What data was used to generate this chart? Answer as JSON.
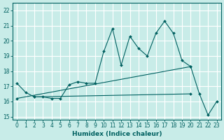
{
  "title": "",
  "xlabel": "Humidex (Indice chaleur)",
  "bg_color": "#c8ece8",
  "grid_color": "#ffffff",
  "line_color": "#006060",
  "xlim": [
    -0.5,
    23.5
  ],
  "ylim": [
    14.8,
    22.5
  ],
  "yticks": [
    15,
    16,
    17,
    18,
    19,
    20,
    21,
    22
  ],
  "xticks": [
    0,
    1,
    2,
    3,
    4,
    5,
    6,
    7,
    8,
    9,
    10,
    11,
    12,
    13,
    14,
    15,
    16,
    17,
    18,
    19,
    20,
    21,
    22,
    23
  ],
  "series1": [
    17.2,
    16.6,
    16.3,
    16.3,
    16.2,
    16.2,
    17.1,
    17.3,
    17.2,
    17.2,
    19.3,
    20.8,
    18.4,
    20.3,
    19.5,
    19.0,
    20.5,
    21.3,
    20.5,
    18.7,
    18.3,
    16.5,
    15.1,
    16.0
  ],
  "series2_x": [
    0,
    20
  ],
  "series2_y": [
    16.2,
    18.3
  ],
  "series3_x": [
    2,
    20
  ],
  "series3_y": [
    16.3,
    16.5
  ]
}
